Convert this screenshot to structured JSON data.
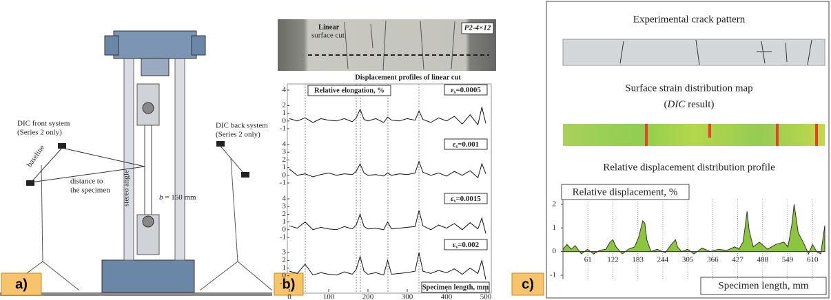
{
  "panel_a": {
    "label": "a)",
    "front_system": [
      "DIC front system",
      "(Series 2 only)"
    ],
    "back_system": [
      "DIC back system",
      "(Series 2 only)"
    ],
    "baseline": "baseline",
    "distance": [
      "distance to",
      "the specimen"
    ],
    "stereo_angle": "stereo angle",
    "width_symbol": "b",
    "width_text": " = 150 mm"
  },
  "panel_b": {
    "label": "b)",
    "cut_label": [
      "Linear",
      "surface cut"
    ],
    "specimen_id": "P2-4×12",
    "title": "Displacement profiles of linear cut",
    "y_label": "Relative elongation, %",
    "x_label": "Specimen length, mm"
  },
  "panel_c": {
    "label": "c)",
    "crack_title": "Experimental crack pattern",
    "strain_title": "Surface strain distribution map",
    "strain_subtitle": [
      "(",
      "DIC",
      " result)"
    ],
    "profile_title": "Relative displacement distribution profile",
    "y_label": "Relative displacement, %",
    "x_label": "Specimen length, mm"
  },
  "chart_data": [
    {
      "type": "line",
      "strain_symbol": "ε",
      "strain_sub": "s",
      "strain_value": "=0.0005",
      "color": "#111",
      "x": [
        0,
        20,
        40,
        60,
        80,
        100,
        120,
        140,
        160,
        170,
        180,
        190,
        200,
        220,
        240,
        250,
        260,
        280,
        300,
        320,
        330,
        340,
        360,
        380,
        400,
        420,
        440,
        460,
        480,
        490,
        500
      ],
      "values": [
        0.3,
        0,
        0.4,
        -0.2,
        0.3,
        0.1,
        0,
        0.3,
        -0.1,
        0.4,
        1.5,
        0.2,
        0,
        0.3,
        -0.2,
        0.5,
        0.1,
        0,
        0.3,
        0.1,
        1.3,
        0.2,
        -0.2,
        0.4,
        0,
        0.6,
        -0.4,
        0.8,
        -0.5,
        1.8,
        -0.3
      ],
      "xlim": [
        0,
        500
      ],
      "ylim": [
        -1,
        4
      ],
      "yticks": [
        -1,
        0,
        1,
        2,
        4
      ]
    },
    {
      "type": "line",
      "strain_symbol": "ε",
      "strain_sub": "s",
      "strain_value": "=0.001",
      "color": "#111",
      "x": [
        0,
        20,
        40,
        60,
        80,
        100,
        120,
        140,
        160,
        170,
        180,
        190,
        200,
        220,
        240,
        250,
        260,
        280,
        300,
        320,
        330,
        340,
        360,
        380,
        400,
        420,
        440,
        460,
        480,
        490,
        500
      ],
      "values": [
        0.8,
        0,
        0.2,
        -0.2,
        0.1,
        0.3,
        0,
        0.2,
        0.1,
        0.5,
        1.5,
        0.3,
        0,
        0.1,
        -0.1,
        0.3,
        0,
        0.2,
        0.1,
        0.3,
        1.8,
        0.4,
        0,
        0.3,
        -0.1,
        0.5,
        0,
        0.6,
        -0.3,
        1.5,
        0.2
      ],
      "xlim": [
        0,
        500
      ],
      "ylim": [
        -1,
        4
      ],
      "yticks": [
        -1,
        0,
        1,
        2,
        3,
        4
      ]
    },
    {
      "type": "line",
      "strain_symbol": "ε",
      "strain_sub": "s",
      "strain_value": "=0.0015",
      "color": "#111",
      "x": [
        0,
        20,
        40,
        60,
        80,
        100,
        120,
        140,
        160,
        170,
        180,
        190,
        200,
        220,
        240,
        250,
        260,
        280,
        300,
        320,
        330,
        340,
        360,
        380,
        400,
        420,
        440,
        460,
        480,
        490,
        500
      ],
      "values": [
        0.5,
        0.2,
        1,
        0,
        0.3,
        0.1,
        0,
        0.4,
        0.1,
        0.6,
        2,
        0.4,
        0.1,
        0.2,
        0,
        1,
        0.1,
        0.2,
        0.3,
        0.4,
        2.5,
        0.5,
        0,
        0.6,
        0.2,
        0.8,
        0,
        0.9,
        0.1,
        1.5,
        -0.5
      ],
      "xlim": [
        0,
        500
      ],
      "ylim": [
        -1,
        4
      ],
      "yticks": [
        -1,
        0,
        1,
        2,
        3,
        4
      ]
    },
    {
      "type": "line",
      "strain_symbol": "ε",
      "strain_sub": "s",
      "strain_value": "=0.002",
      "color": "#111",
      "x": [
        0,
        20,
        40,
        60,
        80,
        100,
        120,
        140,
        160,
        170,
        180,
        190,
        200,
        220,
        240,
        250,
        260,
        280,
        300,
        320,
        330,
        340,
        360,
        380,
        400,
        420,
        440,
        460,
        480,
        490,
        500
      ],
      "values": [
        0.6,
        0.3,
        1.5,
        0.1,
        0.4,
        0.2,
        0.1,
        0.5,
        0.2,
        0.8,
        2.5,
        0.6,
        0.2,
        0.4,
        0.1,
        2,
        0.2,
        0.3,
        0.4,
        0.6,
        3,
        0.6,
        0.3,
        0.7,
        0.4,
        0.9,
        0.2,
        1,
        0.3,
        2,
        -0.5
      ],
      "xlim": [
        0,
        500
      ],
      "ylim": [
        -1,
        4
      ],
      "yticks": [
        -1,
        0,
        1,
        2,
        3
      ],
      "xticks": [
        0,
        100,
        200,
        300,
        400,
        500
      ]
    },
    {
      "type": "area",
      "color": "#8cc63e",
      "grid": true,
      "x": [
        0,
        10,
        20,
        30,
        45,
        60,
        75,
        90,
        105,
        115,
        122,
        130,
        145,
        160,
        175,
        185,
        195,
        200,
        205,
        215,
        230,
        250,
        265,
        275,
        280,
        290,
        305,
        320,
        340,
        360,
        380,
        400,
        420,
        430,
        440,
        445,
        450,
        455,
        465,
        480,
        500,
        520,
        540,
        550,
        560,
        565,
        575,
        590,
        600,
        610,
        620,
        630,
        640
      ],
      "values": [
        0.1,
        0.3,
        0.1,
        0.25,
        -0.1,
        0.1,
        -0.1,
        0.05,
        0.1,
        0.4,
        0.5,
        0.2,
        -0.1,
        0.1,
        0.2,
        0.6,
        1.3,
        1.2,
        0.5,
        0,
        0.1,
        -0.05,
        0.3,
        0.5,
        0.2,
        0,
        0.1,
        -0.1,
        0.15,
        0,
        0.1,
        0.05,
        0.2,
        0.1,
        0.4,
        1.0,
        1.7,
        0.9,
        0.2,
        0.4,
        0.1,
        0.3,
        0.4,
        0.2,
        1.2,
        2.0,
        0.8,
        0.3,
        -0.1,
        0.3,
        0,
        -0.1,
        1.1
      ],
      "xlim": [
        0,
        640
      ],
      "ylim": [
        -1,
        2.2
      ],
      "yticks": [
        -1,
        0,
        1,
        2
      ],
      "xticks": [
        61,
        122,
        183,
        244,
        305,
        366,
        427,
        488,
        549,
        610
      ]
    }
  ]
}
